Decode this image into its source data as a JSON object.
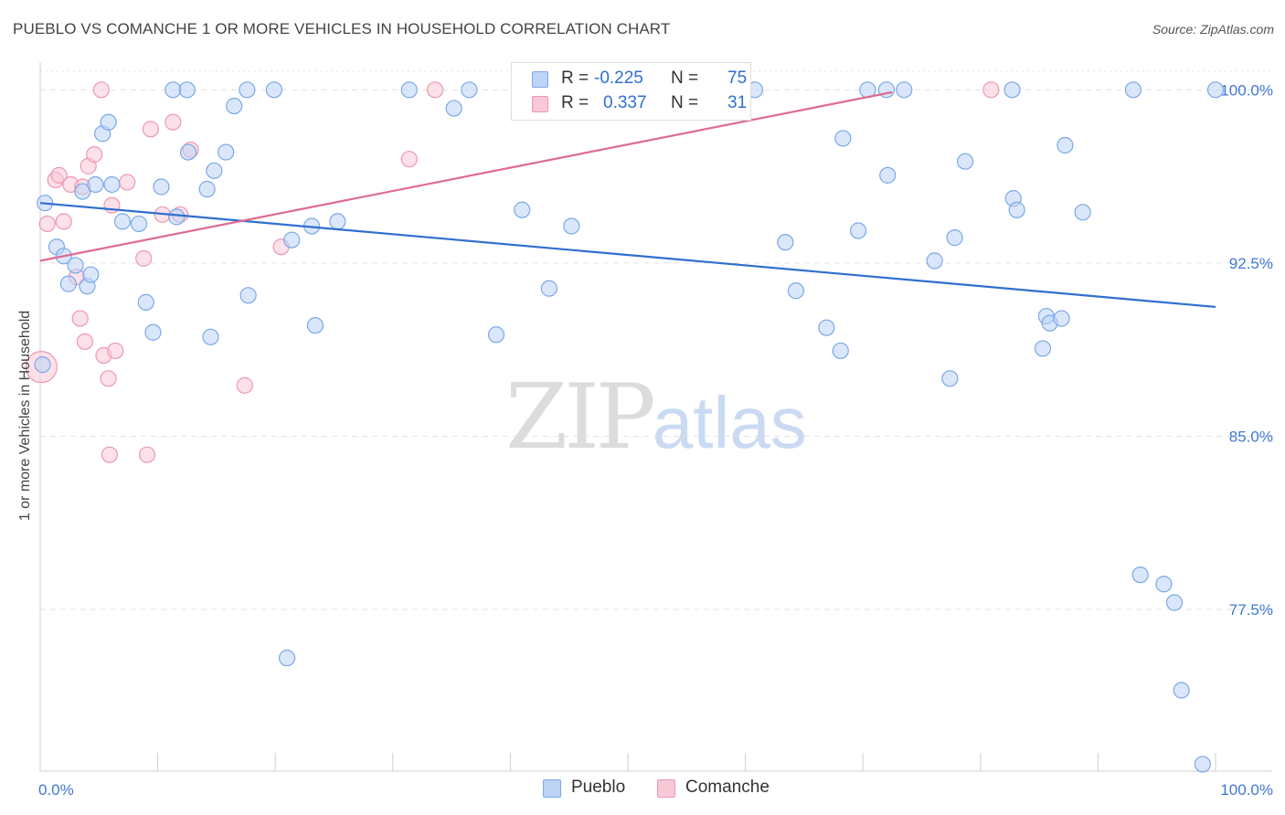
{
  "header": {
    "title": "PUEBLO VS COMANCHE 1 OR MORE VEHICLES IN HOUSEHOLD CORRELATION CHART",
    "source": "Source: ZipAtlas.com"
  },
  "watermark": {
    "zip": "ZIP",
    "atlas": "atlas"
  },
  "legend": {
    "rows": [
      {
        "r_label": "R =",
        "r_value": "-0.225",
        "n_label": "N =",
        "n_value": "75"
      },
      {
        "r_label": "R =",
        "r_value": "0.337",
        "n_label": "N =",
        "n_value": "31"
      }
    ]
  },
  "bottom_legend": {
    "pueblo": "Pueblo",
    "comanche": "Comanche"
  },
  "colors": {
    "pueblo_fill": "#bcd4f6",
    "pueblo_stroke": "#7aa8e8",
    "pueblo_line": "#2f6fd0",
    "comanche_fill": "#f9c8d6",
    "comanche_stroke": "#ec98b2",
    "comanche_line": "#e06a92",
    "tick_label": "#3f78d2",
    "grid": "#e3e3e3"
  },
  "chart_data": {
    "type": "scatter",
    "title": "PUEBLO VS COMANCHE 1 OR MORE VEHICLES IN HOUSEHOLD CORRELATION CHART",
    "xlabel": "",
    "ylabel": "1 or more Vehicles in Household",
    "xlim": [
      0,
      100
    ],
    "ylim": [
      70.5,
      101.2
    ],
    "x_tick_labels": [
      "0.0%",
      "100.0%"
    ],
    "y_ticks": [
      77.5,
      85.0,
      92.5,
      100.0
    ],
    "y_tick_labels": [
      "77.5%",
      "85.0%",
      "92.5%",
      "100.0%"
    ],
    "series": [
      {
        "name": "Pueblo",
        "r": -0.225,
        "n": 75,
        "trend": {
          "x": [
            0,
            100
          ],
          "y": [
            95.1,
            90.6
          ]
        },
        "points": [
          [
            0.4,
            95.1
          ],
          [
            1.4,
            93.2
          ],
          [
            2.0,
            92.8
          ],
          [
            2.4,
            91.6
          ],
          [
            3.0,
            92.4
          ],
          [
            3.6,
            95.6
          ],
          [
            4.0,
            91.5
          ],
          [
            4.3,
            92.0
          ],
          [
            4.7,
            95.9
          ],
          [
            5.3,
            98.1
          ],
          [
            5.8,
            98.6
          ],
          [
            6.1,
            95.9
          ],
          [
            7.0,
            94.3
          ],
          [
            8.4,
            94.2
          ],
          [
            9.0,
            90.8
          ],
          [
            9.6,
            89.5
          ],
          [
            10.3,
            95.8
          ],
          [
            11.3,
            100.0
          ],
          [
            11.6,
            94.5
          ],
          [
            12.5,
            100.0
          ],
          [
            12.6,
            97.3
          ],
          [
            14.2,
            95.7
          ],
          [
            14.5,
            89.3
          ],
          [
            14.8,
            96.5
          ],
          [
            15.8,
            97.3
          ],
          [
            16.5,
            99.3
          ],
          [
            17.6,
            100.0
          ],
          [
            17.7,
            91.1
          ],
          [
            19.9,
            100.0
          ],
          [
            21.4,
            93.5
          ],
          [
            23.1,
            94.1
          ],
          [
            23.4,
            89.8
          ],
          [
            25.3,
            94.3
          ],
          [
            31.4,
            100.0
          ],
          [
            35.2,
            99.2
          ],
          [
            36.5,
            100.0
          ],
          [
            38.8,
            89.4
          ],
          [
            41.0,
            94.8
          ],
          [
            43.3,
            91.4
          ],
          [
            45.2,
            94.1
          ],
          [
            47.1,
            100.0
          ],
          [
            58.9,
            100.0
          ],
          [
            60.8,
            100.0
          ],
          [
            63.4,
            93.4
          ],
          [
            64.3,
            91.3
          ],
          [
            66.9,
            89.7
          ],
          [
            68.1,
            88.7
          ],
          [
            68.3,
            97.9
          ],
          [
            69.6,
            93.9
          ],
          [
            70.4,
            100.0
          ],
          [
            72.0,
            100.0
          ],
          [
            72.1,
            96.3
          ],
          [
            73.5,
            100.0
          ],
          [
            76.1,
            92.6
          ],
          [
            77.4,
            87.5
          ],
          [
            77.8,
            93.6
          ],
          [
            78.7,
            96.9
          ],
          [
            82.7,
            100.0
          ],
          [
            82.8,
            95.3
          ],
          [
            83.1,
            94.8
          ],
          [
            85.3,
            88.8
          ],
          [
            85.6,
            90.2
          ],
          [
            85.9,
            89.9
          ],
          [
            86.9,
            90.1
          ],
          [
            87.2,
            97.6
          ],
          [
            88.7,
            94.7
          ],
          [
            93.0,
            100.0
          ],
          [
            93.6,
            79.0
          ],
          [
            95.6,
            78.6
          ],
          [
            96.5,
            77.8
          ],
          [
            97.1,
            74.0
          ],
          [
            98.9,
            70.8
          ],
          [
            100.0,
            100.0
          ],
          [
            0.2,
            88.1
          ],
          [
            21.0,
            75.4
          ]
        ]
      },
      {
        "name": "Comanche",
        "r": 0.337,
        "n": 31,
        "trend": {
          "x": [
            0,
            72.5
          ],
          "y": [
            92.6,
            99.9
          ]
        },
        "points": [
          [
            0.6,
            94.2
          ],
          [
            1.3,
            96.1
          ],
          [
            1.6,
            96.3
          ],
          [
            2.0,
            94.3
          ],
          [
            2.6,
            95.9
          ],
          [
            3.1,
            91.9
          ],
          [
            3.4,
            90.1
          ],
          [
            3.6,
            95.8
          ],
          [
            3.8,
            89.1
          ],
          [
            4.1,
            96.7
          ],
          [
            4.6,
            97.2
          ],
          [
            5.2,
            100.0
          ],
          [
            5.4,
            88.5
          ],
          [
            5.8,
            87.5
          ],
          [
            5.9,
            84.2
          ],
          [
            6.1,
            95.0
          ],
          [
            6.4,
            88.7
          ],
          [
            7.4,
            96.0
          ],
          [
            8.8,
            92.7
          ],
          [
            9.1,
            84.2
          ],
          [
            9.4,
            98.3
          ],
          [
            10.4,
            94.6
          ],
          [
            11.3,
            98.6
          ],
          [
            11.9,
            94.6
          ],
          [
            12.8,
            97.4
          ],
          [
            17.4,
            87.2
          ],
          [
            20.5,
            93.2
          ],
          [
            31.4,
            97.0
          ],
          [
            33.6,
            100.0
          ],
          [
            80.9,
            100.0
          ],
          [
            0.1,
            88.0
          ]
        ]
      }
    ]
  }
}
